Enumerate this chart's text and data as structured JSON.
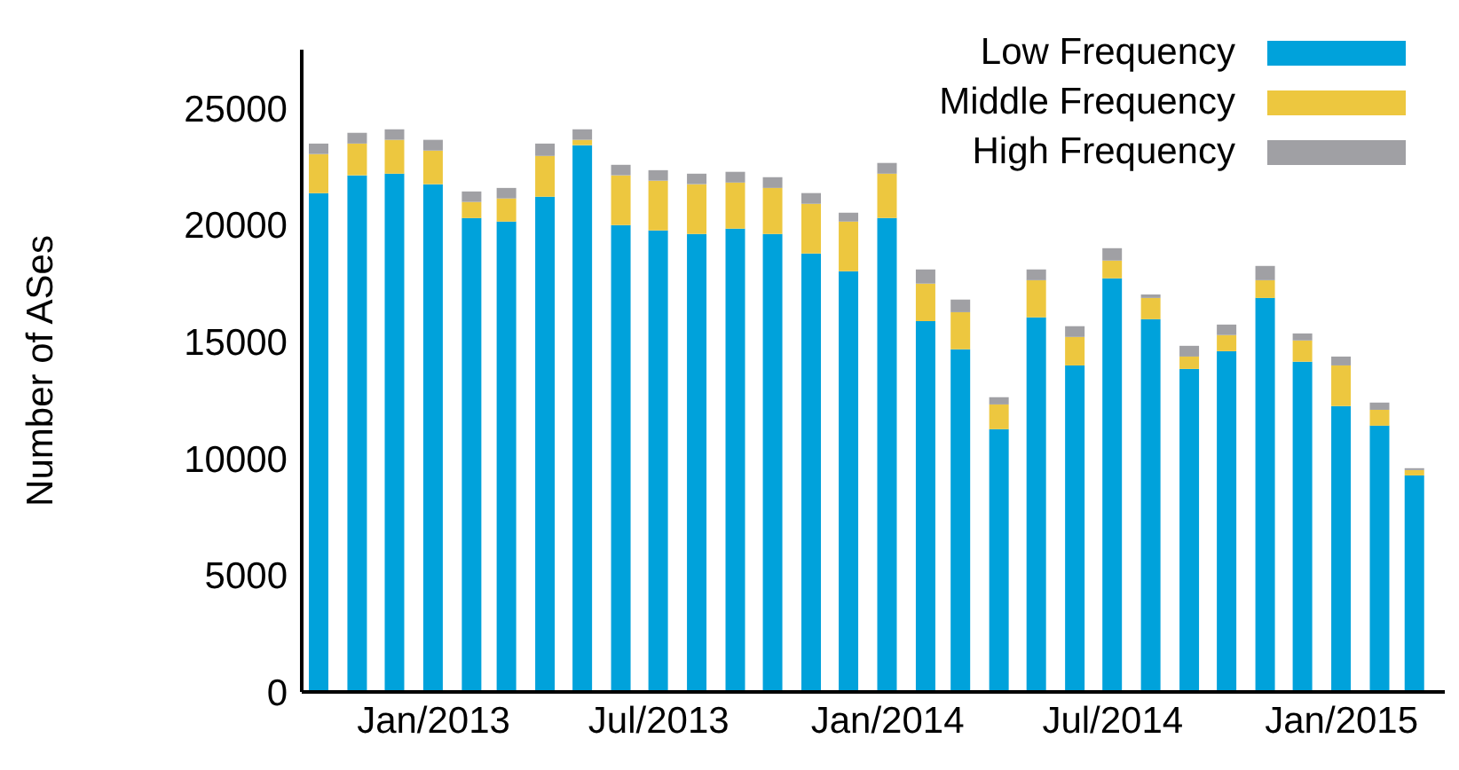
{
  "chart_data": {
    "type": "bar",
    "stacked": true,
    "ylabel": "Number of ASes",
    "x": [
      "2012-10",
      "2012-11",
      "2012-12",
      "2013-01",
      "2013-02",
      "2013-03",
      "2013-04",
      "2013-05",
      "2013-06",
      "2013-07",
      "2013-08",
      "2013-09",
      "2013-10",
      "2013-11",
      "2013-12",
      "2014-01",
      "2014-02",
      "2014-03",
      "2014-04",
      "2014-05",
      "2014-06",
      "2014-07",
      "2014-08",
      "2014-09",
      "2014-10",
      "2014-11",
      "2014-12",
      "2015-01",
      "2015-02",
      "2015-03"
    ],
    "xlim": [
      "2012-09-17",
      "2015-03-25"
    ],
    "xticks": [
      {
        "value": "2013-01",
        "label": "Jan/2013"
      },
      {
        "value": "2013-07",
        "label": "Jul/2013"
      },
      {
        "value": "2014-01",
        "label": "Jan/2014"
      },
      {
        "value": "2014-07",
        "label": "Jul/2014"
      },
      {
        "value": "2015-01",
        "label": "Jan/2015"
      }
    ],
    "ylim": [
      0,
      27500
    ],
    "yticks": [
      0,
      5000,
      10000,
      15000,
      20000,
      25000
    ],
    "legend": "top right",
    "grid": false,
    "series": [
      {
        "name": "Low Frequency",
        "color": "#00a2db",
        "values": [
          21360,
          22120,
          22190,
          21740,
          20290,
          20140,
          21200,
          23410,
          19990,
          19760,
          19610,
          19840,
          19610,
          18770,
          18010,
          20290,
          15880,
          14670,
          11250,
          16040,
          13980,
          17710,
          15960,
          13830,
          14590,
          16870,
          14140,
          12240,
          11400,
          9270
        ]
      },
      {
        "name": "Middle Frequency",
        "color": "#edc73f",
        "values": [
          1670,
          1360,
          1450,
          1440,
          690,
          990,
          1750,
          230,
          2130,
          2130,
          2130,
          1970,
          1970,
          2130,
          2130,
          1900,
          1600,
          1590,
          1060,
          1590,
          1220,
          760,
          910,
          530,
          690,
          760,
          910,
          1740,
          680,
          230
        ]
      },
      {
        "name": "High Frequency",
        "color": "#a0a0a4",
        "values": [
          450,
          460,
          450,
          460,
          450,
          450,
          530,
          450,
          450,
          450,
          450,
          460,
          460,
          460,
          380,
          460,
          610,
          540,
          310,
          460,
          460,
          530,
          150,
          460,
          450,
          610,
          300,
          380,
          310,
          80
        ]
      }
    ]
  }
}
